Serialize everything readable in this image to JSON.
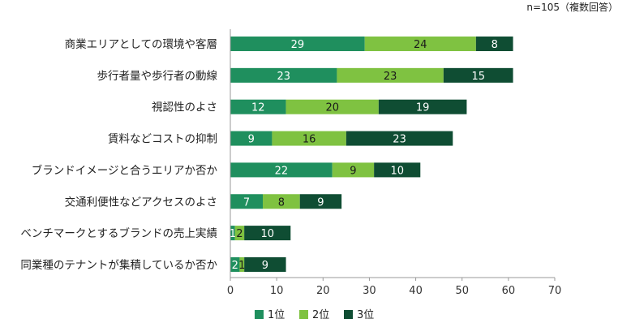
{
  "note": "n=105（複数回答）",
  "chart_data": {
    "type": "bar",
    "orientation": "horizontal",
    "stacked": true,
    "categories": [
      "商業エリアとしての環境や客層",
      "歩行者量や歩行者の動線",
      "視認性のよさ",
      "賃料などコストの抑制",
      "ブランドイメージと合うエリアか否か",
      "交通利便性などアクセスのよさ",
      "ベンチマークとするブランドの売上実績",
      "同業種のテナントが集積しているか否か"
    ],
    "series": [
      {
        "name": "1位",
        "color": "#1f8f5e",
        "values": [
          29,
          23,
          12,
          9,
          22,
          7,
          1,
          2
        ]
      },
      {
        "name": "2位",
        "color": "#7fc241",
        "values": [
          24,
          23,
          20,
          16,
          9,
          8,
          2,
          1
        ]
      },
      {
        "name": "3位",
        "color": "#0f4d33",
        "values": [
          8,
          15,
          19,
          23,
          10,
          9,
          10,
          9
        ]
      }
    ],
    "value_labels": [
      [
        "29",
        "24",
        "8"
      ],
      [
        "23",
        "23",
        "15"
      ],
      [
        "12",
        "20",
        "19"
      ],
      [
        "9",
        "16",
        "23"
      ],
      [
        "22",
        "9",
        "10"
      ],
      [
        "7",
        "8",
        "9"
      ],
      [
        "1",
        "2",
        "10"
      ],
      [
        "2",
        "1",
        "9"
      ]
    ],
    "xlim": [
      0,
      70
    ],
    "xticks": [
      "0",
      "10",
      "20",
      "30",
      "40",
      "50",
      "60",
      "70"
    ],
    "legend_position": "bottom-center",
    "gridlines": false
  }
}
